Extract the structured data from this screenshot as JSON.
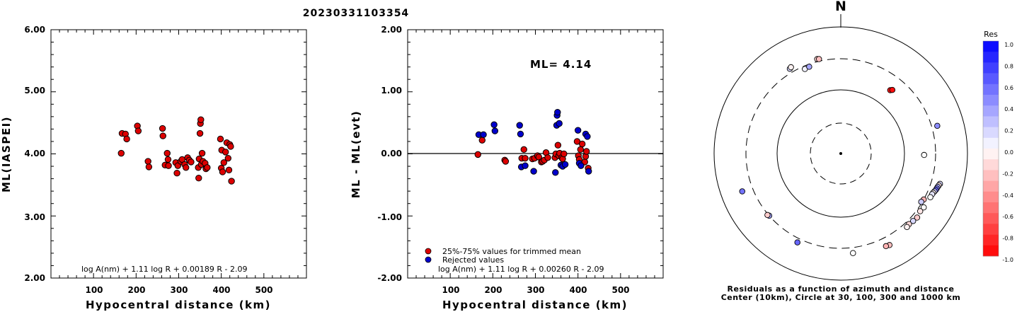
{
  "title": "20230331103354",
  "colors": {
    "kept": "#dd0000",
    "rejected": "#0000cc",
    "axis": "#000000"
  },
  "left_panel": {
    "ylabel": "ML(IASPEI)",
    "xlabel": "Hypocentral distance (km)",
    "formula": "log A(nm) + 1.11 log R + 0.00189 R - 2.09",
    "ytick_labels": [
      "6.00",
      "5.00",
      "4.00",
      "3.00",
      "2.00"
    ],
    "xtick_labels": [
      "100",
      "200",
      "300",
      "400",
      "500"
    ]
  },
  "middle_panel": {
    "ylabel": "ML - ML(evt)",
    "xlabel": "Hypocentral distance (km)",
    "ml_text": "ML= 4.14",
    "formula": "log A(nm) + 1.11 log R + 0.00260 R - 2.09",
    "legend": [
      "25%-75% values for trimmed mean",
      "Rejected values"
    ],
    "ytick_labels": [
      "2.00",
      "1.00",
      "0.00",
      "-1.00",
      "-2.00"
    ],
    "xtick_labels": [
      "100",
      "200",
      "300",
      "400",
      "500"
    ]
  },
  "right_panel": {
    "north_label": "N",
    "caption_line1": "Residuals as a function of azimuth and distance",
    "caption_line2": "Center (10km), Circle at 30, 100, 300 and 1000 km",
    "colorbar_title": "Res",
    "colorbar_labels": [
      "1.0",
      "0.8",
      "0.6",
      "0.4",
      "0.2",
      "0.0",
      "-0.2",
      "-0.4",
      "-0.6",
      "-0.8",
      "-1.0"
    ]
  },
  "chart_data": [
    {
      "type": "scatter",
      "title": "20230331103354",
      "xlabel": "Hypocentral distance (km)",
      "ylabel": "ML(IASPEI)",
      "xlim": [
        0,
        600
      ],
      "ylim": [
        2.0,
        6.0
      ],
      "annotation": "log A(nm) + 1.11 log R + 0.00189 R - 2.09",
      "points": [
        [
          165,
          4.01
        ],
        [
          167,
          4.33
        ],
        [
          175,
          4.32
        ],
        [
          178,
          4.24
        ],
        [
          203,
          4.45
        ],
        [
          205,
          4.37
        ],
        [
          228,
          3.88
        ],
        [
          230,
          3.79
        ],
        [
          262,
          4.41
        ],
        [
          263,
          4.29
        ],
        [
          268,
          3.82
        ],
        [
          273,
          4.01
        ],
        [
          275,
          3.91
        ],
        [
          276,
          3.81
        ],
        [
          293,
          3.86
        ],
        [
          296,
          3.69
        ],
        [
          298,
          3.81
        ],
        [
          305,
          3.88
        ],
        [
          308,
          3.91
        ],
        [
          314,
          3.83
        ],
        [
          317,
          3.78
        ],
        [
          321,
          3.94
        ],
        [
          325,
          3.9
        ],
        [
          329,
          3.87
        ],
        [
          346,
          3.78
        ],
        [
          347,
          3.61
        ],
        [
          348,
          3.92
        ],
        [
          350,
          4.33
        ],
        [
          351,
          4.49
        ],
        [
          352,
          4.55
        ],
        [
          353,
          3.83
        ],
        [
          355,
          4.01
        ],
        [
          357,
          3.88
        ],
        [
          362,
          3.85
        ],
        [
          364,
          3.76
        ],
        [
          367,
          3.78
        ],
        [
          398,
          4.24
        ],
        [
          400,
          3.77
        ],
        [
          401,
          4.06
        ],
        [
          403,
          3.71
        ],
        [
          406,
          3.86
        ],
        [
          410,
          4.03
        ],
        [
          413,
          4.18
        ],
        [
          416,
          3.93
        ],
        [
          418,
          3.74
        ],
        [
          420,
          4.15
        ],
        [
          422,
          4.12
        ],
        [
          424,
          3.56
        ]
      ]
    },
    {
      "type": "scatter",
      "xlabel": "Hypocentral distance (km)",
      "ylabel": "ML - ML(evt)",
      "xlim": [
        0,
        600
      ],
      "ylim": [
        -2.0,
        2.0
      ],
      "annotation": "ML= 4.14",
      "reference_line_y": 0.0,
      "series": [
        {
          "name": "25%-75% values for trimmed mean",
          "points": [
            [
              165,
              -0.01
            ],
            [
              175,
              0.22
            ],
            [
              228,
              -0.1
            ],
            [
              230,
              -0.12
            ],
            [
              268,
              -0.07
            ],
            [
              273,
              0.07
            ],
            [
              276,
              -0.07
            ],
            [
              293,
              -0.08
            ],
            [
              298,
              -0.07
            ],
            [
              305,
              -0.03
            ],
            [
              308,
              -0.05
            ],
            [
              314,
              -0.13
            ],
            [
              317,
              -0.12
            ],
            [
              321,
              -0.1
            ],
            [
              325,
              0.02
            ],
            [
              329,
              -0.06
            ],
            [
              346,
              -0.06
            ],
            [
              348,
              0.0
            ],
            [
              353,
              0.14
            ],
            [
              355,
              -0.03
            ],
            [
              357,
              0.01
            ],
            [
              362,
              -0.06
            ],
            [
              364,
              -0.08
            ],
            [
              367,
              0.0
            ],
            [
              398,
              0.2
            ],
            [
              401,
              -0.03
            ],
            [
              403,
              -0.09
            ],
            [
              406,
              0.07
            ],
            [
              410,
              0.16
            ],
            [
              416,
              -0.13
            ],
            [
              418,
              -0.04
            ],
            [
              420,
              0.04
            ],
            [
              424,
              -0.23
            ]
          ]
        },
        {
          "name": "Rejected values",
          "points": [
            [
              167,
              0.31
            ],
            [
              178,
              0.31
            ],
            [
              203,
              0.47
            ],
            [
              205,
              0.37
            ],
            [
              263,
              0.46
            ],
            [
              265,
              0.32
            ],
            [
              267,
              -0.21
            ],
            [
              276,
              -0.19
            ],
            [
              296,
              -0.28
            ],
            [
              347,
              -0.3
            ],
            [
              350,
              0.46
            ],
            [
              351,
              0.62
            ],
            [
              352,
              0.67
            ],
            [
              356,
              0.49
            ],
            [
              360,
              -0.18
            ],
            [
              364,
              -0.2
            ],
            [
              370,
              -0.17
            ],
            [
              400,
              0.38
            ],
            [
              403,
              -0.15
            ],
            [
              407,
              -0.19
            ],
            [
              418,
              0.32
            ],
            [
              422,
              0.28
            ],
            [
              425,
              -0.28
            ]
          ]
        }
      ]
    },
    {
      "type": "scatter",
      "title": "Residuals as a function of azimuth and distance",
      "projection": "polar",
      "radial_rings_km": [
        30,
        100,
        300,
        1000
      ],
      "center_km": 10,
      "colorbar": {
        "label": "Res",
        "range": [
          -1.0,
          1.0
        ]
      },
      "points": [
        {
          "az": 329,
          "dist": 350,
          "res": 0.15
        },
        {
          "az": 330,
          "dist": 360,
          "res": -0.05
        },
        {
          "az": 337,
          "dist": 270,
          "res": 0.05
        },
        {
          "az": 340,
          "dist": 275,
          "res": 0.35
        },
        {
          "az": 346,
          "dist": 330,
          "res": -0.15
        },
        {
          "az": 347,
          "dist": 325,
          "res": -0.25
        },
        {
          "az": 38,
          "dist": 180,
          "res": -0.9
        },
        {
          "az": 39,
          "dist": 190,
          "res": -0.95
        },
        {
          "az": 74,
          "dist": 370,
          "res": 0.45
        },
        {
          "az": 91,
          "dist": 200,
          "res": 0.0
        },
        {
          "az": 107,
          "dist": 420,
          "res": 0.15
        },
        {
          "az": 108,
          "dist": 410,
          "res": -0.1
        },
        {
          "az": 109,
          "dist": 400,
          "res": 0.3
        },
        {
          "az": 110,
          "dist": 395,
          "res": 0.5
        },
        {
          "az": 111,
          "dist": 390,
          "res": 0.6
        },
        {
          "az": 112,
          "dist": 380,
          "res": 0.2
        },
        {
          "az": 113,
          "dist": 370,
          "res": -0.05
        },
        {
          "az": 114,
          "dist": 365,
          "res": 0.1
        },
        {
          "az": 116,
          "dist": 360,
          "res": 0.0
        },
        {
          "az": 119,
          "dist": 300,
          "res": -0.3
        },
        {
          "az": 121,
          "dist": 290,
          "res": 0.2
        },
        {
          "az": 123,
          "dist": 350,
          "res": 0.0
        },
        {
          "az": 126,
          "dist": 340,
          "res": -0.1
        },
        {
          "az": 130,
          "dist": 360,
          "res": -0.2
        },
        {
          "az": 133,
          "dist": 350,
          "res": 0.15
        },
        {
          "az": 136,
          "dist": 340,
          "res": -0.15
        },
        {
          "az": 138,
          "dist": 350,
          "res": -0.05
        },
        {
          "az": 152,
          "dist": 420,
          "res": -0.25
        },
        {
          "az": 154,
          "dist": 410,
          "res": -0.3
        },
        {
          "az": 173,
          "dist": 370,
          "res": 0.0
        },
        {
          "az": 206,
          "dist": 350,
          "res": 0.6
        },
        {
          "az": 229,
          "dist": 300,
          "res": 0.35
        },
        {
          "az": 230,
          "dist": 310,
          "res": -0.2
        },
        {
          "az": 249,
          "dist": 450,
          "res": 0.55
        }
      ]
    }
  ]
}
